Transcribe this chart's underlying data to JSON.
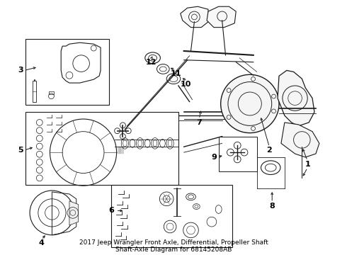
{
  "title": "2017 Jeep Wrangler Front Axle, Differential, Propeller Shaft\nShaft-Axle Diagram for 68145208AB",
  "bg_color": "#ffffff",
  "line_color": "#1a1a1a",
  "label_color": "#000000",
  "title_fontsize": 6.5,
  "label_fontsize": 8,
  "fig_width": 4.9,
  "fig_height": 3.6,
  "dpi": 100
}
